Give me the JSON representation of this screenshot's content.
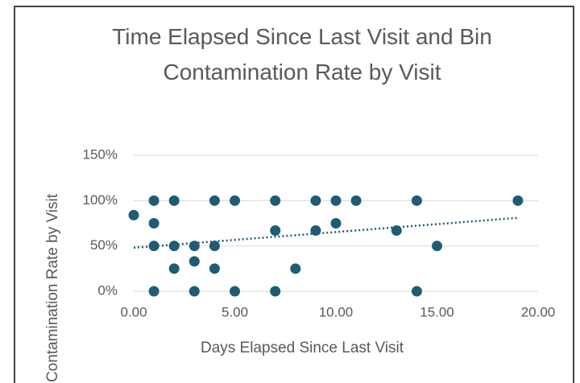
{
  "chart_data": {
    "type": "scatter",
    "title": "Time Elapsed Since Last Visit and Bin Contamination Rate by Visit",
    "x_label": "Days Elapsed Since Last Visit",
    "y_label": "Contamination Rate by Visit",
    "series": [
      {
        "color": "#1f5c73",
        "x": [
          0,
          1,
          1,
          1,
          1,
          2,
          2,
          2,
          3,
          3,
          3,
          4,
          4,
          4,
          5,
          5,
          7,
          7,
          7,
          8,
          9,
          9,
          10,
          10,
          11,
          13,
          14,
          14,
          15,
          19
        ],
        "values": [
          84,
          100,
          75,
          50,
          0,
          100,
          50,
          25,
          50,
          33,
          0,
          100,
          50,
          25,
          100,
          0,
          100,
          67,
          0,
          25,
          100,
          67,
          100,
          75,
          100,
          67,
          100,
          0,
          50,
          100
        ]
      }
    ],
    "trendline": {
      "color": "#1f5c73",
      "x": [
        0,
        19
      ],
      "values": [
        48,
        81
      ]
    },
    "xlim": [
      0,
      20
    ],
    "xticks": [
      {
        "value": 0,
        "label": "0.00"
      },
      {
        "value": 5,
        "label": "5.00"
      },
      {
        "value": 10,
        "label": "10.00"
      },
      {
        "value": 15,
        "label": "15.00"
      },
      {
        "value": 20,
        "label": "20.00"
      }
    ],
    "ylim": [
      0,
      150
    ],
    "yticks": [
      {
        "value": 0,
        "label": "0%"
      },
      {
        "value": 50,
        "label": "50%"
      },
      {
        "value": 100,
        "label": "100%"
      },
      {
        "value": 150,
        "label": "150%"
      }
    ],
    "grid": true
  }
}
